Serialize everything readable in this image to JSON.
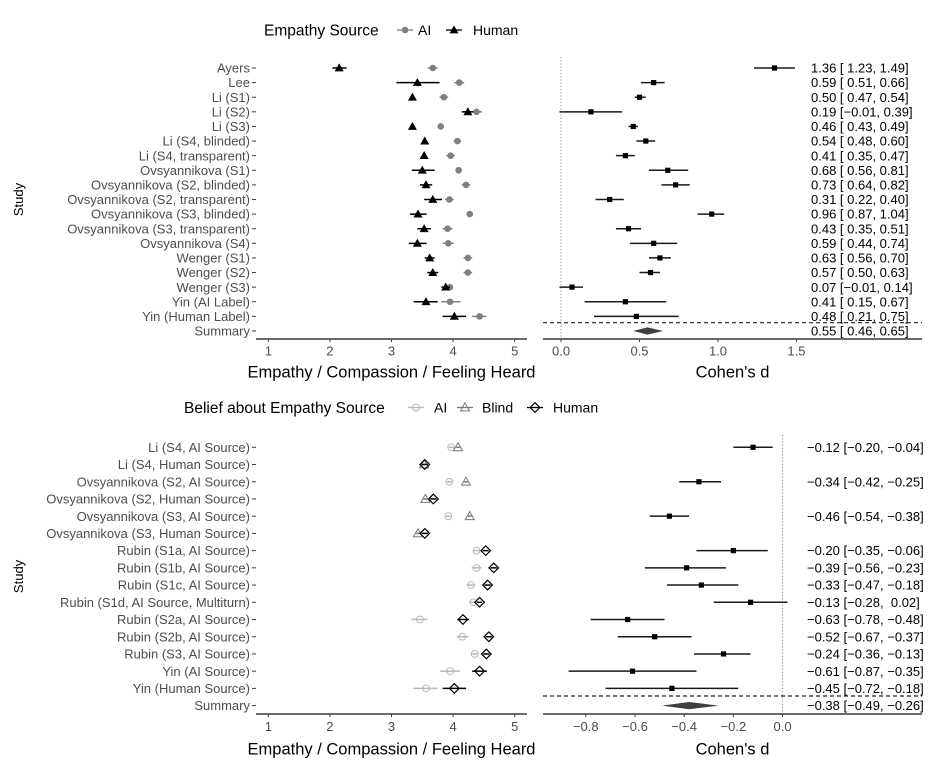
{
  "chart_data": [
    {
      "type": "scatter",
      "subtype": "dot-plot-with-error-bars",
      "panel": "top-left",
      "legend": {
        "title": "Empathy Source",
        "entries": [
          "AI",
          "Human"
        ],
        "position": "top"
      },
      "ylabel": "Study",
      "xlabel": "Empathy / Compassion / Feeling Heard",
      "xlim": [
        0.8,
        5.2
      ],
      "xticks": [
        1,
        2,
        3,
        4,
        5
      ],
      "xtick_labels": [
        "1",
        "2",
        "3",
        "4",
        "5"
      ],
      "grid": false,
      "categories": [
        "Ayers",
        "Lee",
        "Li (S1)",
        "Li (S2)",
        "Li (S3)",
        "Li (S4, blinded)",
        "Li (S4, transparent)",
        "Ovsyannikova (S1)",
        "Ovsyannikova (S2, blinded)",
        "Ovsyannikova (S2, transparent)",
        "Ovsyannikova (S3, blinded)",
        "Ovsyannikova (S3, transparent)",
        "Ovsyannikova (S4)",
        "Wenger (S1)",
        "Wenger (S2)",
        "Wenger (S3)",
        "Yin (AI Label)",
        "Yin (Human Label)",
        "Summary"
      ],
      "series": [
        {
          "name": "AI",
          "color": "#808080",
          "marker": "filled-circle",
          "values": [
            3.67,
            4.1,
            3.85,
            4.38,
            3.8,
            4.07,
            3.96,
            4.09,
            4.21,
            3.94,
            4.27,
            3.91,
            3.92,
            4.24,
            4.24,
            3.95,
            3.95,
            4.43,
            null
          ],
          "ci_low": [
            3.59,
            4.02,
            3.78,
            4.29,
            3.77,
            4.01,
            3.89,
            4.05,
            4.14,
            3.87,
            4.24,
            3.83,
            3.83,
            4.17,
            4.17,
            3.91,
            3.81,
            4.31,
            null
          ],
          "ci_high": [
            3.75,
            4.18,
            3.92,
            4.47,
            3.83,
            4.13,
            4.03,
            4.13,
            4.28,
            4.01,
            4.3,
            3.99,
            4.01,
            4.31,
            4.31,
            3.99,
            4.12,
            4.54,
            null
          ]
        },
        {
          "name": "Human",
          "color": "#000000",
          "marker": "filled-triangle",
          "values": [
            2.15,
            3.42,
            3.34,
            4.24,
            3.34,
            3.54,
            3.53,
            3.5,
            3.56,
            3.67,
            3.43,
            3.53,
            3.42,
            3.62,
            3.67,
            3.88,
            3.56,
            4.02,
            null
          ],
          "ci_low": [
            2.04,
            3.08,
            3.32,
            4.14,
            3.32,
            3.51,
            3.5,
            3.33,
            3.46,
            3.53,
            3.3,
            3.42,
            3.28,
            3.54,
            3.58,
            3.81,
            3.36,
            3.83,
            null
          ],
          "ci_high": [
            2.27,
            3.78,
            3.36,
            4.33,
            3.36,
            3.57,
            3.56,
            3.7,
            3.66,
            3.82,
            3.57,
            3.64,
            3.57,
            3.7,
            3.76,
            3.95,
            3.75,
            4.21,
            null
          ]
        }
      ]
    },
    {
      "type": "scatter",
      "subtype": "forest",
      "panel": "top-right",
      "rows_match_chart": 0,
      "xlabel": "Cohen's d",
      "xlim": [
        -0.115,
        2.3
      ],
      "xticks": [
        0,
        0.5,
        1,
        1.5
      ],
      "xtick_labels": [
        "0.0",
        "0.5",
        "1.0",
        "1.5"
      ],
      "reference_line": 0,
      "point_color": "#000000",
      "summary_color": "#404040",
      "d": [
        1.36,
        0.59,
        0.5,
        0.19,
        0.46,
        0.54,
        0.41,
        0.68,
        0.73,
        0.31,
        0.96,
        0.43,
        0.59,
        0.63,
        0.57,
        0.07,
        0.41,
        0.48
      ],
      "ci_low": [
        1.23,
        0.51,
        0.47,
        -0.01,
        0.43,
        0.48,
        0.35,
        0.56,
        0.64,
        0.22,
        0.87,
        0.35,
        0.44,
        0.56,
        0.5,
        -0.01,
        0.15,
        0.21
      ],
      "ci_high": [
        1.49,
        0.66,
        0.54,
        0.39,
        0.49,
        0.6,
        0.47,
        0.81,
        0.82,
        0.4,
        1.04,
        0.51,
        0.74,
        0.7,
        0.63,
        0.14,
        0.67,
        0.75
      ],
      "labels": [
        "1.36 [ 1.23, 1.49]",
        "0.59 [ 0.51, 0.66]",
        "0.50 [ 0.47, 0.54]",
        "0.19 [−0.01, 0.39]",
        "0.46 [ 0.43, 0.49]",
        "0.54 [ 0.48, 0.60]",
        "0.41 [ 0.35, 0.47]",
        "0.68 [ 0.56, 0.81]",
        "0.73 [ 0.64, 0.82]",
        "0.31 [ 0.22, 0.40]",
        "0.96 [ 0.87, 1.04]",
        "0.43 [ 0.35, 0.51]",
        "0.59 [ 0.44, 0.74]",
        "0.63 [ 0.56, 0.70]",
        "0.57 [ 0.50, 0.63]",
        "0.07 [−0.01, 0.14]",
        "0.41 [ 0.15, 0.67]",
        "0.48 [ 0.21, 0.75]"
      ],
      "summary": {
        "d": 0.55,
        "ci_low": 0.46,
        "ci_high": 0.65,
        "label": "0.55 [ 0.46, 0.65]"
      }
    },
    {
      "type": "scatter",
      "subtype": "dot-plot-with-error-bars",
      "panel": "bottom-left",
      "legend": {
        "title": "Belief about Empathy Source",
        "entries": [
          "AI",
          "Blind",
          "Human"
        ],
        "position": "top"
      },
      "ylabel": "Study",
      "xlabel": "Empathy / Compassion / Feeling Heard",
      "xlim": [
        0.8,
        5.2
      ],
      "xticks": [
        1,
        2,
        3,
        4,
        5
      ],
      "xtick_labels": [
        "1",
        "2",
        "3",
        "4",
        "5"
      ],
      "grid": false,
      "categories": [
        "Li (S4, AI Source)",
        "Li (S4, Human Source)",
        "Ovsyannikova (S2, AI Source)",
        "Ovsyannikova (S2, Human Source)",
        "Ovsyannikova (S3, AI Source)",
        "Ovsyannikova (S3, Human Source)",
        "Rubin (S1a, AI Source)",
        "Rubin (S1b, AI Source)",
        "Rubin (S1c, AI Source)",
        "Rubin (S1d, AI Source, Multiturn)",
        "Rubin (S2a, AI Source)",
        "Rubin (S2b, AI Source)",
        "Rubin (S3, AI Source)",
        "Yin (AI Source)",
        "Yin (Human Source)",
        "Summary"
      ],
      "series": [
        {
          "name": "AI",
          "color": "#b8b8b8",
          "marker": "open-circle",
          "values": [
            3.97,
            null,
            3.94,
            null,
            3.92,
            null,
            4.38,
            4.38,
            4.29,
            4.33,
            3.46,
            4.15,
            4.35,
            3.95,
            3.56,
            null
          ],
          "ci_low": [
            3.93,
            null,
            3.9,
            null,
            3.88,
            null,
            4.33,
            4.3,
            4.22,
            4.26,
            3.32,
            4.06,
            4.29,
            3.79,
            3.36,
            null
          ],
          "ci_high": [
            4.01,
            null,
            3.98,
            null,
            3.96,
            null,
            4.43,
            4.46,
            4.36,
            4.4,
            3.58,
            4.25,
            4.41,
            4.11,
            3.75,
            null
          ]
        },
        {
          "name": "Blind",
          "color": "#7a7a7a",
          "marker": "open-triangle",
          "values": [
            4.08,
            3.53,
            4.21,
            3.55,
            4.27,
            3.43,
            null,
            null,
            null,
            null,
            null,
            null,
            null,
            null,
            null,
            null
          ],
          "ci_low": [
            4.05,
            3.5,
            4.18,
            3.52,
            4.24,
            3.4,
            null,
            null,
            null,
            null,
            null,
            null,
            null,
            null,
            null,
            null
          ],
          "ci_high": [
            4.11,
            3.56,
            4.24,
            3.58,
            4.3,
            3.46,
            null,
            null,
            null,
            null,
            null,
            null,
            null,
            null,
            null,
            null
          ]
        },
        {
          "name": "Human",
          "color": "#000000",
          "marker": "open-diamond",
          "values": [
            null,
            3.54,
            null,
            3.68,
            null,
            3.54,
            4.53,
            4.66,
            4.56,
            4.43,
            4.16,
            4.58,
            4.54,
            4.43,
            4.02,
            null
          ],
          "ci_low": [
            null,
            3.49,
            null,
            3.63,
            null,
            3.49,
            4.48,
            4.61,
            4.51,
            4.39,
            4.07,
            4.53,
            4.49,
            4.31,
            3.83,
            null
          ],
          "ci_high": [
            null,
            3.59,
            null,
            3.73,
            null,
            3.59,
            4.58,
            4.71,
            4.61,
            4.47,
            4.26,
            4.63,
            4.59,
            4.55,
            4.21,
            null
          ]
        }
      ]
    },
    {
      "type": "scatter",
      "subtype": "forest",
      "panel": "bottom-right",
      "rows_match_chart": 2,
      "xlabel": "Cohen's d",
      "xlim": [
        -0.974,
        0.567
      ],
      "xticks": [
        -0.8,
        -0.6,
        -0.4,
        -0.2,
        0
      ],
      "xtick_labels": [
        "−0.8",
        "−0.6",
        "−0.4",
        "−0.2",
        "0.0"
      ],
      "reference_line": 0,
      "point_color": "#000000",
      "summary_color": "#404040",
      "d": [
        -0.12,
        null,
        -0.34,
        null,
        -0.46,
        null,
        -0.2,
        -0.39,
        -0.33,
        -0.13,
        -0.63,
        -0.52,
        -0.24,
        -0.61,
        -0.45
      ],
      "ci_low": [
        -0.2,
        null,
        -0.42,
        null,
        -0.54,
        null,
        -0.35,
        -0.56,
        -0.47,
        -0.28,
        -0.78,
        -0.67,
        -0.36,
        -0.87,
        -0.72
      ],
      "ci_high": [
        -0.04,
        null,
        -0.25,
        null,
        -0.38,
        null,
        -0.06,
        -0.23,
        -0.18,
        0.02,
        -0.48,
        -0.37,
        -0.13,
        -0.35,
        -0.18
      ],
      "labels": [
        "−0.12 [−0.20, −0.04]",
        null,
        "−0.34 [−0.42, −0.25]",
        null,
        "−0.46 [−0.54, −0.38]",
        null,
        "−0.20 [−0.35, −0.06]",
        "−0.39 [−0.56, −0.23]",
        "−0.33 [−0.47, −0.18]",
        "−0.13 [−0.28,  0.02]",
        "−0.63 [−0.78, −0.48]",
        "−0.52 [−0.67, −0.37]",
        "−0.24 [−0.36, −0.13]",
        "−0.61 [−0.87, −0.35]",
        "−0.45 [−0.72, −0.18]"
      ],
      "summary": {
        "d": -0.38,
        "ci_low": -0.49,
        "ci_high": -0.26,
        "label": "−0.38 [−0.49, −0.26]"
      }
    }
  ]
}
